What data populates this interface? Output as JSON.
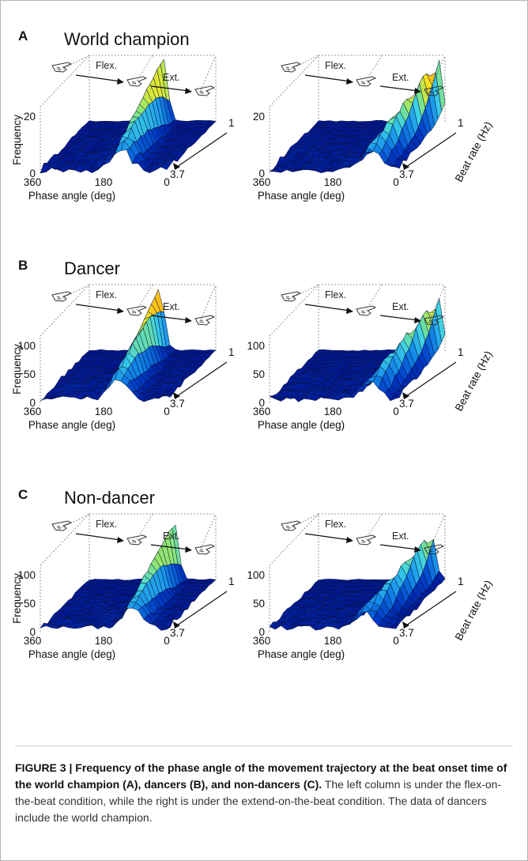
{
  "panels": [
    {
      "letter": "A",
      "title": "World champion",
      "plots": [
        {
          "condition": "flex-on-the-beat",
          "zmax": "20",
          "yticks": [
            "20",
            "0"
          ],
          "ylabel": "Frequency",
          "xticks": [
            "360",
            "180",
            "0"
          ],
          "xlabel": "Phase angle (deg)",
          "beat_ticks": [
            "1",
            "3.7"
          ],
          "beat_label": "",
          "hand_labels": [
            "Flex.",
            "Ext."
          ],
          "peak": {
            "phase": 150,
            "beat_span": [
              1,
              3.7
            ],
            "height": 1.0,
            "color": "#ffd11a"
          }
        },
        {
          "condition": "extend-on-the-beat",
          "zmax": "20",
          "yticks": [
            "20",
            "0"
          ],
          "ylabel": "",
          "xticks": [
            "360",
            "180",
            "0"
          ],
          "xlabel": "Phase angle (deg)",
          "beat_ticks": [
            "1",
            "3.7"
          ],
          "beat_label": "Beat rate (Hz)",
          "hand_labels": [
            "Flex.",
            "Ext."
          ],
          "peak": {
            "phase": 20,
            "beat_span": [
              1,
              3.7
            ],
            "height": 1.0,
            "color": "#45c7ff"
          }
        }
      ]
    },
    {
      "letter": "B",
      "title": "Dancer",
      "plots": [
        {
          "condition": "flex-on-the-beat",
          "zmax": "100",
          "yticks": [
            "100",
            "50",
            "0"
          ],
          "ylabel": "Frequency",
          "xticks": [
            "360",
            "180",
            "0"
          ],
          "xlabel": "Phase angle (deg)",
          "beat_ticks": [
            "1",
            "3.7"
          ],
          "beat_label": "",
          "hand_labels": [
            "Flex.",
            "Ext."
          ],
          "peak": {
            "phase": 160,
            "beat_span": [
              1,
              3.7
            ],
            "height": 1.0,
            "color": "#9b1010"
          }
        },
        {
          "condition": "extend-on-the-beat",
          "zmax": "100",
          "yticks": [
            "100",
            "50",
            "0"
          ],
          "ylabel": "",
          "xticks": [
            "360",
            "180",
            "0"
          ],
          "xlabel": "Phase angle (deg)",
          "beat_ticks": [
            "1",
            "3.7"
          ],
          "beat_label": "Beat rate (Hz)",
          "hand_labels": [
            "Flex.",
            "Ext."
          ],
          "peak": {
            "phase": 20,
            "beat_span": [
              1,
              3.7
            ],
            "height": 0.85,
            "color": "#c8d21f"
          }
        }
      ]
    },
    {
      "letter": "C",
      "title": "Non-dancer",
      "plots": [
        {
          "condition": "flex-on-the-beat",
          "zmax": "100",
          "yticks": [
            "100",
            "50",
            "0"
          ],
          "ylabel": "Frequency",
          "xticks": [
            "360",
            "180",
            "0"
          ],
          "xlabel": "Phase angle (deg)",
          "beat_ticks": [
            "1",
            "3.7"
          ],
          "beat_label": "",
          "hand_labels": [
            "Flex.",
            "Ext."
          ],
          "peak": {
            "phase": 120,
            "beat_span": [
              1,
              3.7
            ],
            "height": 0.95,
            "color": "#ffd11a"
          }
        },
        {
          "condition": "extend-on-the-beat",
          "zmax": "100",
          "yticks": [
            "100",
            "50",
            "0"
          ],
          "ylabel": "",
          "xticks": [
            "360",
            "180",
            "0"
          ],
          "xlabel": "Phase angle (deg)",
          "beat_ticks": [
            "1",
            "3.7"
          ],
          "beat_label": "Beat rate (Hz)",
          "hand_labels": [
            "Flex.",
            "Ext."
          ],
          "peak": {
            "phase": 40,
            "beat_span": [
              1,
              3.7
            ],
            "height": 0.75,
            "color": "#ff6a00"
          }
        }
      ]
    }
  ],
  "colors": {
    "surface_base": "#00229e",
    "surface_mid": "#1c8fe6",
    "edge": "#0a0f33"
  },
  "caption": {
    "bold": "FIGURE 3 | Frequency of the phase angle of the movement trajectory at the beat onset time of the world champion (A), dancers (B), and non-dancers (C).",
    "text": " The left column is under the flex-on-the-beat condition, while the right is under the extend-on-the-beat condition. The data of dancers include the world champion."
  }
}
